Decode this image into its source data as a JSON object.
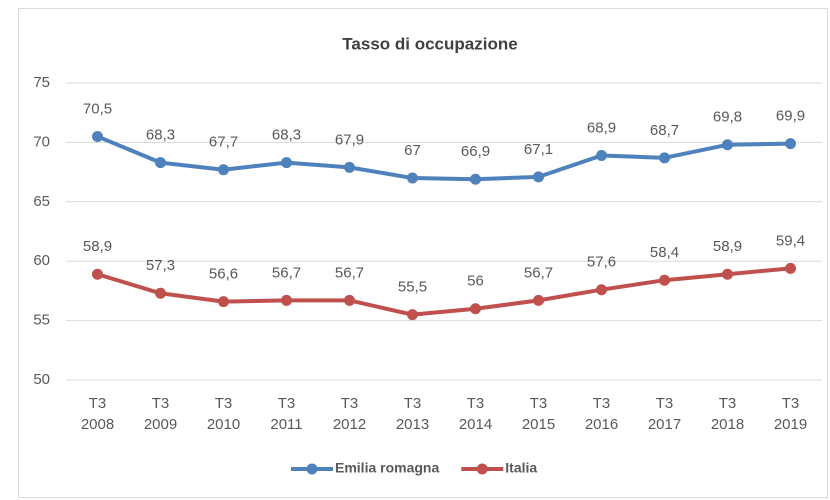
{
  "chart_data": {
    "type": "line",
    "title": "Tasso di occupazione",
    "categories": [
      "T3 2008",
      "T3 2009",
      "T3 2010",
      "T3 2011",
      "T3 2012",
      "T3 2013",
      "T3 2014",
      "T3 2015",
      "T3 2016",
      "T3 2017",
      "T3 2018",
      "T3 2019"
    ],
    "series": [
      {
        "name": "Emilia romagna",
        "color": "#4f81bd",
        "values": [
          70.5,
          68.3,
          67.7,
          68.3,
          67.9,
          67,
          66.9,
          67.1,
          68.9,
          68.7,
          69.8,
          69.9
        ],
        "value_labels": [
          "70,5",
          "68,3",
          "67,7",
          "68,3",
          "67,9",
          "67",
          "66,9",
          "67,1",
          "68,9",
          "68,7",
          "69,8",
          "69,9"
        ]
      },
      {
        "name": "Italia",
        "color": "#c0504d",
        "values": [
          58.9,
          57.3,
          56.6,
          56.7,
          56.7,
          55.5,
          56,
          56.7,
          57.6,
          58.4,
          58.9,
          59.4
        ],
        "value_labels": [
          "58,9",
          "57,3",
          "56,6",
          "56,7",
          "56,7",
          "55,5",
          "56",
          "56,7",
          "57,6",
          "58,4",
          "58,9",
          "59,4"
        ]
      }
    ],
    "ylim": [
      50,
      75
    ],
    "yticks": [
      50,
      55,
      60,
      65,
      70,
      75
    ],
    "grid": true,
    "legend": "bottom"
  }
}
